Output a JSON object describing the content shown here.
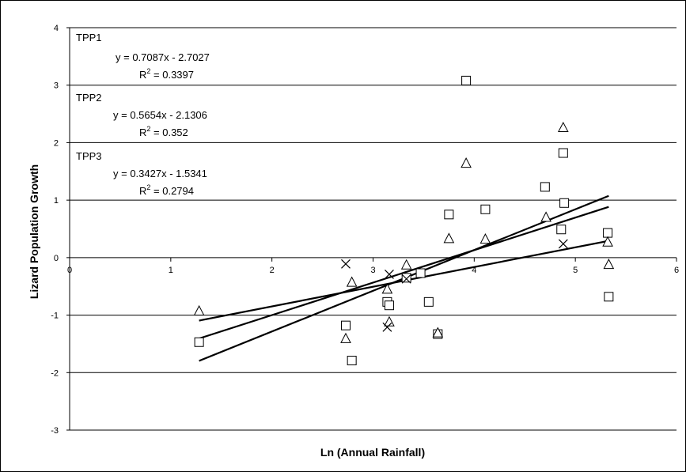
{
  "chart_data": {
    "type": "scatter",
    "xlabel": "Ln (Annual Rainfall)",
    "ylabel": "Lizard Population Growth",
    "xlim": [
      0,
      6
    ],
    "ylim": [
      -3,
      4
    ],
    "xticks": [
      "0",
      "1",
      "2",
      "3",
      "4",
      "5",
      "6"
    ],
    "yticks": [
      "-3",
      "-2",
      "-1",
      "0",
      "1",
      "2",
      "3",
      "4"
    ],
    "grid": "horizontal",
    "series": [
      {
        "marker": "square",
        "points": [
          [
            1.28,
            -1.47
          ],
          [
            2.73,
            -1.18
          ],
          [
            2.79,
            -1.79
          ],
          [
            3.14,
            -0.77
          ],
          [
            3.16,
            -0.83
          ],
          [
            3.33,
            -0.35
          ],
          [
            3.47,
            -0.27
          ],
          [
            3.55,
            -0.77
          ],
          [
            3.64,
            -1.33
          ],
          [
            3.75,
            0.75
          ],
          [
            3.92,
            3.08
          ],
          [
            4.11,
            0.84
          ],
          [
            4.7,
            1.23
          ],
          [
            4.86,
            0.49
          ],
          [
            4.88,
            1.82
          ],
          [
            4.89,
            0.95
          ],
          [
            5.32,
            0.43
          ],
          [
            5.33,
            -0.68
          ]
        ]
      },
      {
        "marker": "triangle",
        "points": [
          [
            1.28,
            -0.93
          ],
          [
            2.73,
            -1.41
          ],
          [
            2.79,
            -0.43
          ],
          [
            3.14,
            -0.55
          ],
          [
            3.16,
            -1.12
          ],
          [
            3.33,
            -0.13
          ],
          [
            3.64,
            -1.31
          ],
          [
            3.75,
            0.33
          ],
          [
            3.92,
            1.64
          ],
          [
            4.11,
            0.32
          ],
          [
            4.71,
            0.7
          ],
          [
            4.88,
            2.26
          ],
          [
            5.32,
            0.27
          ],
          [
            5.33,
            -0.12
          ]
        ]
      },
      {
        "marker": "cross",
        "points": [
          [
            2.73,
            -0.11
          ],
          [
            3.14,
            -1.21
          ],
          [
            3.16,
            -0.29
          ],
          [
            3.33,
            -0.37
          ],
          [
            4.88,
            0.24
          ]
        ]
      }
    ],
    "trendlines": [
      {
        "name": "TPP1",
        "slope": 0.7087,
        "intercept": -2.7027,
        "x_range": [
          1.28,
          5.33
        ]
      },
      {
        "name": "TPP2",
        "slope": 0.5654,
        "intercept": -2.1306,
        "x_range": [
          1.28,
          5.33
        ]
      },
      {
        "name": "TPP3",
        "slope": 0.3427,
        "intercept": -1.5341,
        "x_range": [
          1.28,
          5.33
        ]
      }
    ],
    "annotations": [
      {
        "label": "TPP1",
        "equation": "y = 0.7087x - 2.7027",
        "r2_prefix": "R",
        "r2_sup": "2",
        "r2_value": " = 0.3397"
      },
      {
        "label": "TPP2",
        "equation": "y = 0.5654x - 2.1306",
        "r2_prefix": "R",
        "r2_sup": "2",
        "r2_value": " = 0.352"
      },
      {
        "label": "TPP3",
        "equation": "y = 0.3427x - 1.5341",
        "r2_prefix": "R",
        "r2_sup": "2",
        "r2_value": " = 0.2794"
      }
    ]
  }
}
